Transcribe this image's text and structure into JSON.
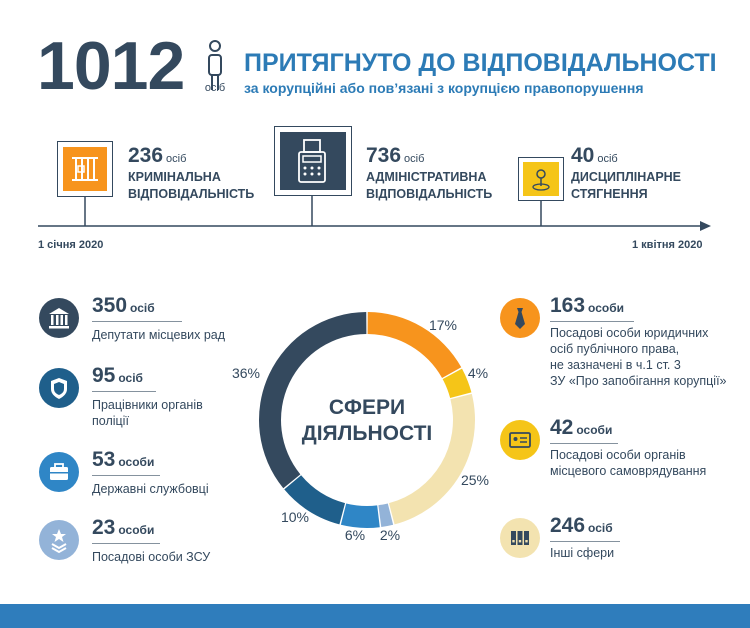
{
  "header": {
    "total": "1012",
    "total_unit": "осіб",
    "title": "ПРИТЯГНУТО ДО ВІДПОВІДАЛЬНОСТІ",
    "subtitle": "за корупційні або пов’язані з корупцією правопорушення",
    "person_icon": "person-icon"
  },
  "timeline": {
    "start_date": "1 січня 2020",
    "end_date": "1 квітня 2020",
    "items": [
      {
        "number": "236",
        "unit": "осіб",
        "label_line1": "КРИМІНАЛЬНА",
        "label_line2": "ВІДПОВІДАЛЬНІСТЬ",
        "icon": "prison-bars-icon",
        "color": "#f7941d"
      },
      {
        "number": "736",
        "unit": "осіб",
        "label_line1": "АДМІНІСТРАТИВНА",
        "label_line2": "ВІДПОВІДАЛЬНІСТЬ",
        "icon": "fax-machine-icon",
        "color": "#34495e"
      },
      {
        "number": "40",
        "unit": "осіб",
        "label_line1": "ДИСЦИПЛІНАРНЕ",
        "label_line2": "СТЯГНЕННЯ",
        "icon": "location-pin-icon",
        "color": "#f5c518"
      }
    ]
  },
  "donut": {
    "center_line1": "СФЕРИ",
    "center_line2": "ДІЯЛЬНОСТІ"
  },
  "chart_data": {
    "type": "pie",
    "categories": [
      "Посадові особи юридичних осіб публічного права",
      "Посадові особи органів місцевого самоврядування",
      "Інші сфери",
      "Посадові особи ЗСУ",
      "Державні службовці",
      "Працівники органів поліції",
      "Депутати місцевих рад"
    ],
    "values": [
      17,
      4,
      25,
      2,
      6,
      10,
      36
    ],
    "labels": [
      "17%",
      "4%",
      "25%",
      "2%",
      "6%",
      "10%",
      "36%"
    ],
    "colors": [
      "#f7941d",
      "#f5c518",
      "#f3e3b0",
      "#93b3d8",
      "#2f86c6",
      "#1f5f8b",
      "#34495e"
    ]
  },
  "left_categories": [
    {
      "number": "350",
      "unit": "осіб",
      "label": "Депутати місцевих рад",
      "icon": "government-building-icon",
      "color": "#34495e"
    },
    {
      "number": "95",
      "unit": "осіб",
      "label_line1": "Працівники органів",
      "label_line2": "поліції",
      "icon": "police-badge-icon",
      "color": "#1f5f8b"
    },
    {
      "number": "53",
      "unit": "особи",
      "label": "Державні службовці",
      "icon": "briefcase-icon",
      "color": "#2f86c6"
    },
    {
      "number": "23",
      "unit": "особи",
      "label": "Посадові особи ЗСУ",
      "icon": "military-rank-icon",
      "color": "#93b3d8"
    }
  ],
  "right_categories": [
    {
      "number": "163",
      "unit": "особи",
      "label_lines": [
        "Посадові особи юридичних",
        "осіб публічного права,",
        "не зазначені в ч.1 ст. 3",
        "ЗУ «Про запобігання корупції»"
      ],
      "icon": "necktie-icon",
      "color": "#f7941d"
    },
    {
      "number": "42",
      "unit": "особи",
      "label_lines": [
        "Посадові особи органів",
        "місцевого самоврядування"
      ],
      "icon": "id-card-icon",
      "color": "#f5c518"
    },
    {
      "number": "246",
      "unit": "осіб",
      "label_lines": [
        "Інші сфери"
      ],
      "icon": "binders-icon",
      "color": "#f3e3b0"
    }
  ]
}
